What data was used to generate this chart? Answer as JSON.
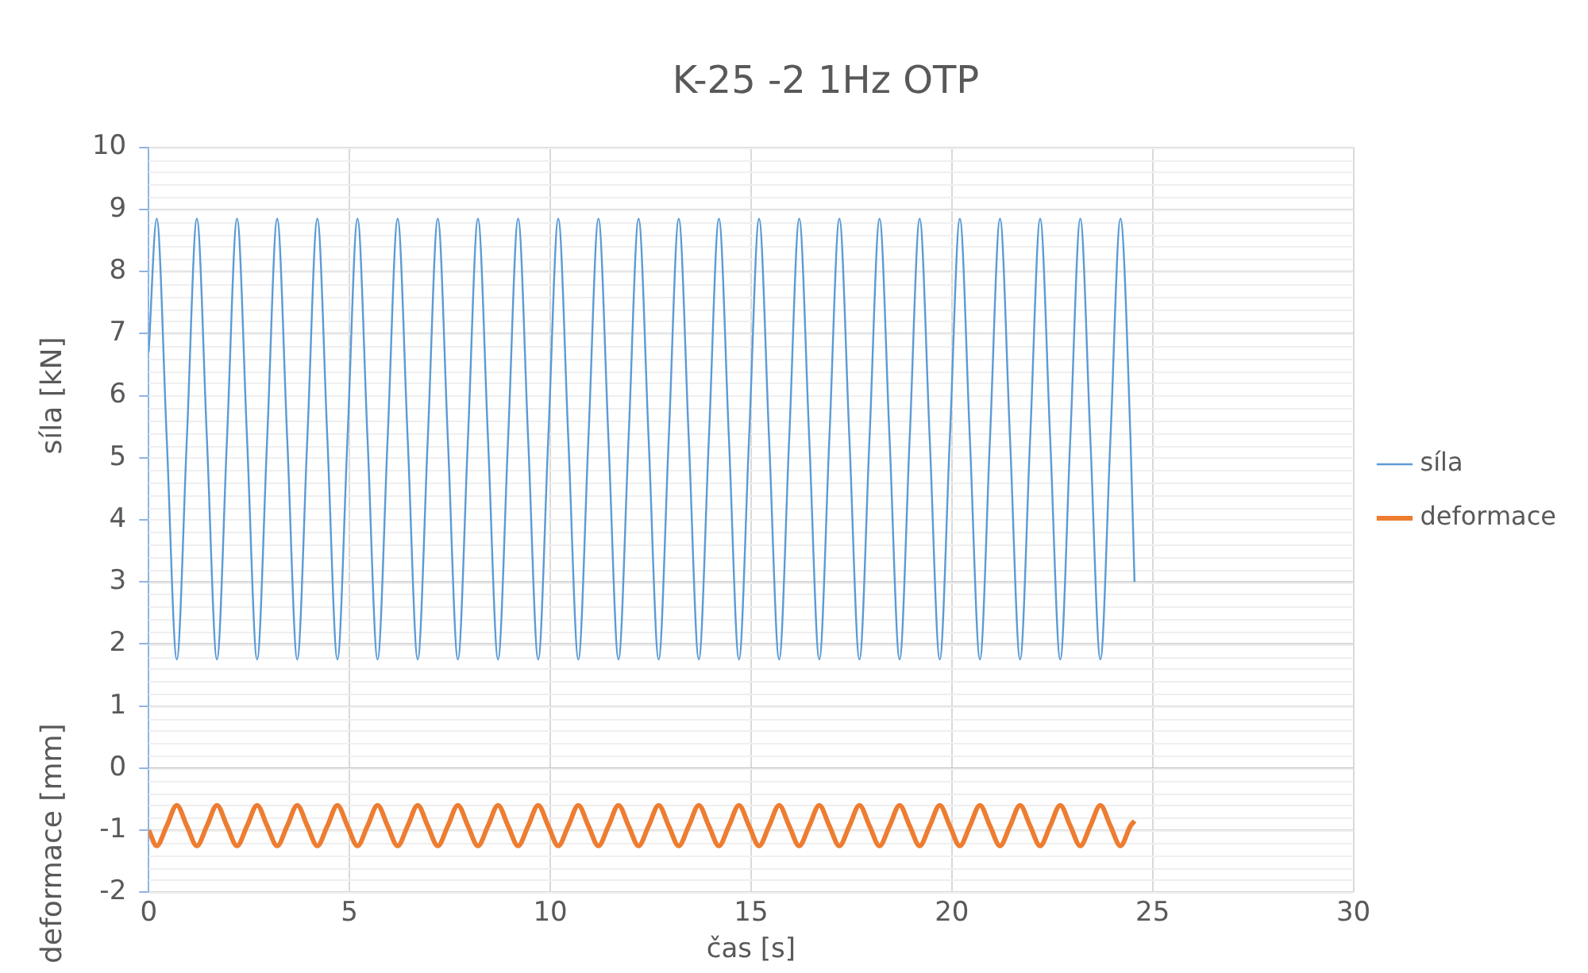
{
  "chart_data": {
    "type": "line",
    "title": "K-25 -2 1Hz OTP",
    "xlabel": "čas [s]",
    "ylabel": "síla [kN]",
    "annotations": [
      "deformace [mm]"
    ],
    "x": [
      0,
      0.2,
      0.45,
      0.7,
      0.95,
      1.2,
      1.45,
      1.7,
      1.95,
      2.2,
      2.45,
      2.7,
      2.95,
      3.2,
      3.45,
      3.7,
      3.95,
      4.2,
      4.45,
      4.7,
      4.95,
      5.2,
      5.45,
      5.7,
      5.95,
      6.2,
      6.45,
      6.7,
      6.95,
      7.2,
      7.45,
      7.7,
      7.95,
      8.2,
      8.45,
      8.7,
      8.95,
      9.2,
      9.45,
      9.7,
      9.95,
      10.2,
      10.45,
      10.7,
      10.95,
      11.2,
      11.45,
      11.7,
      11.95,
      12.2,
      12.45,
      12.7,
      12.95,
      13.2,
      13.45,
      13.7,
      13.95,
      14.2,
      14.45,
      14.7,
      14.95,
      15.2,
      15.45,
      15.7,
      15.95,
      16.2,
      16.45,
      16.7,
      16.95,
      17.2,
      17.45,
      17.7,
      17.95,
      18.2,
      18.45,
      18.7,
      18.95,
      19.2,
      19.45,
      19.7,
      19.95,
      20.2,
      20.45,
      20.7,
      20.95,
      21.2,
      21.45,
      21.7,
      21.95,
      22.2,
      22.45,
      22.7,
      22.95,
      23.2,
      23.45,
      23.7,
      23.95,
      24.2,
      24.45,
      24.55
    ],
    "series": [
      {
        "name": "síla",
        "color": "#5b9bd5",
        "values": [
          6.7,
          8.85,
          5.3,
          1.75,
          5.3,
          8.85,
          5.3,
          1.75,
          5.3,
          8.85,
          5.3,
          1.75,
          5.3,
          8.85,
          5.3,
          1.75,
          5.3,
          8.85,
          5.3,
          1.75,
          5.3,
          8.85,
          5.3,
          1.75,
          5.3,
          8.85,
          5.3,
          1.75,
          5.3,
          8.85,
          5.3,
          1.75,
          5.3,
          8.85,
          5.3,
          1.75,
          5.3,
          8.85,
          5.3,
          1.75,
          5.3,
          8.85,
          5.3,
          1.75,
          5.3,
          8.85,
          5.3,
          1.75,
          5.3,
          8.85,
          5.3,
          1.75,
          5.3,
          8.85,
          5.3,
          1.75,
          5.3,
          8.85,
          5.3,
          1.75,
          5.3,
          8.85,
          5.3,
          1.75,
          5.3,
          8.85,
          5.3,
          1.75,
          5.3,
          8.85,
          5.3,
          1.75,
          5.3,
          8.85,
          5.3,
          1.75,
          5.3,
          8.85,
          5.3,
          1.75,
          5.3,
          8.85,
          5.3,
          1.75,
          5.3,
          8.85,
          5.3,
          1.75,
          5.3,
          8.85,
          5.3,
          1.75,
          5.3,
          8.85,
          5.3,
          1.75,
          5.3,
          8.85,
          5.3,
          3.0
        ]
      },
      {
        "name": "deformace",
        "color": "#ed7d31",
        "values": [
          -1.0,
          -1.25,
          -0.93,
          -0.6,
          -0.93,
          -1.25,
          -0.93,
          -0.6,
          -0.93,
          -1.25,
          -0.93,
          -0.6,
          -0.93,
          -1.25,
          -0.93,
          -0.6,
          -0.93,
          -1.25,
          -0.93,
          -0.6,
          -0.93,
          -1.25,
          -0.93,
          -0.6,
          -0.93,
          -1.25,
          -0.93,
          -0.6,
          -0.93,
          -1.25,
          -0.93,
          -0.6,
          -0.93,
          -1.25,
          -0.93,
          -0.6,
          -0.93,
          -1.25,
          -0.93,
          -0.6,
          -0.93,
          -1.25,
          -0.93,
          -0.6,
          -0.93,
          -1.25,
          -0.93,
          -0.6,
          -0.93,
          -1.25,
          -0.93,
          -0.6,
          -0.93,
          -1.25,
          -0.93,
          -0.6,
          -0.93,
          -1.25,
          -0.93,
          -0.6,
          -0.93,
          -1.25,
          -0.93,
          -0.6,
          -0.93,
          -1.25,
          -0.93,
          -0.6,
          -0.93,
          -1.25,
          -0.93,
          -0.6,
          -0.93,
          -1.25,
          -0.93,
          -0.6,
          -0.93,
          -1.25,
          -0.93,
          -0.6,
          -0.93,
          -1.25,
          -0.93,
          -0.6,
          -0.93,
          -1.25,
          -0.93,
          -0.6,
          -0.93,
          -1.25,
          -0.93,
          -0.6,
          -0.93,
          -1.25,
          -0.93,
          -0.6,
          -0.93,
          -1.25,
          -0.93,
          -0.85
        ]
      }
    ],
    "xlim": [
      0,
      30
    ],
    "xticks": [
      0,
      5,
      10,
      15,
      20,
      25,
      30
    ],
    "ylim": [
      -2,
      10
    ],
    "yticks": [
      -2,
      -1,
      0,
      1,
      2,
      3,
      4,
      5,
      6,
      7,
      8,
      9,
      10
    ],
    "grid": true,
    "legend": "right",
    "marker": "none",
    "line_style": "solid"
  }
}
